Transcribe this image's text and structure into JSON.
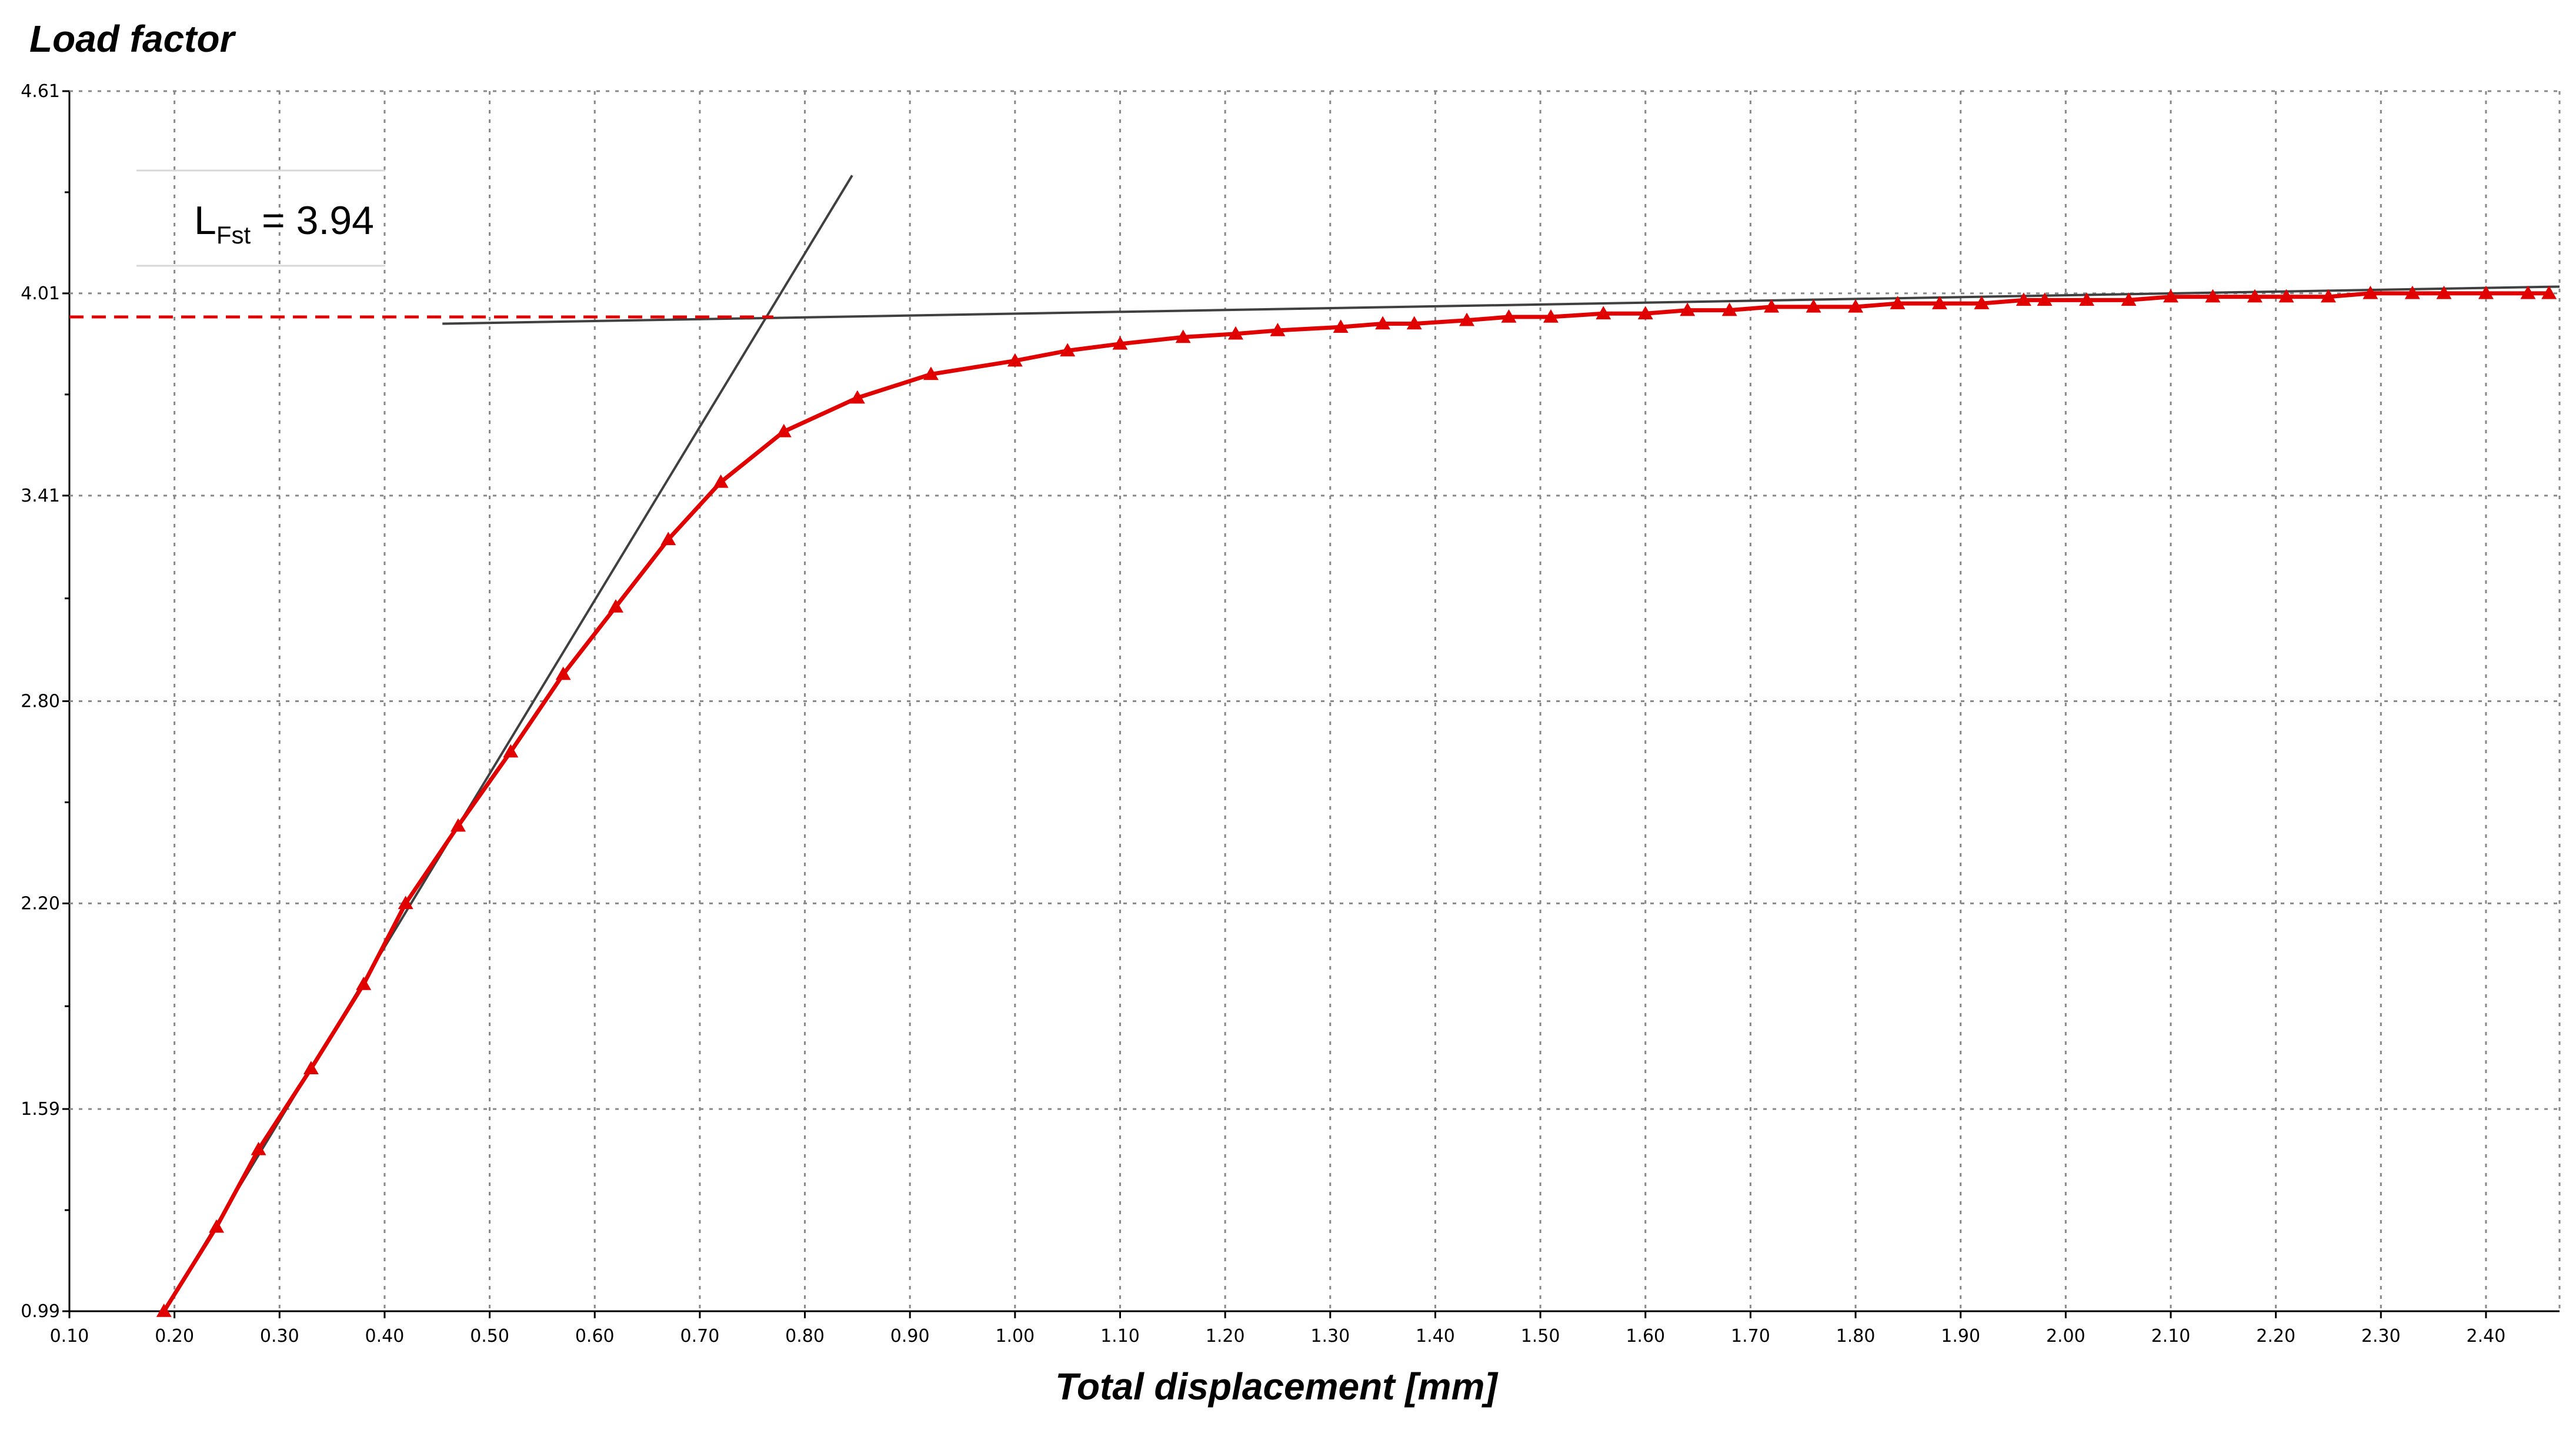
{
  "chart_data": {
    "type": "line",
    "ylabel": "Load factor",
    "xlabel": "Total displacement [mm]",
    "xlim": [
      0.1,
      2.47
    ],
    "ylim": [
      0.99,
      4.61
    ],
    "x_ticks": [
      "0.10",
      "0.20",
      "0.30",
      "0.40",
      "0.50",
      "0.60",
      "0.70",
      "0.80",
      "0.90",
      "1.00",
      "1.10",
      "1.20",
      "1.30",
      "1.40",
      "1.50",
      "1.60",
      "1.70",
      "1.80",
      "1.90",
      "2.00",
      "2.10",
      "2.20",
      "2.30",
      "2.40"
    ],
    "y_ticks": [
      "0.99",
      "1.59",
      "2.20",
      "2.80",
      "3.41",
      "4.01",
      "4.61"
    ],
    "grid": true,
    "colors": {
      "series": "#e00000",
      "reference": "#404040",
      "dashed": "#e00000"
    },
    "series": [
      {
        "marker": "triangle",
        "x": [
          0.19,
          0.24,
          0.28,
          0.33,
          0.38,
          0.42,
          0.47,
          0.52,
          0.57,
          0.62,
          0.67,
          0.72,
          0.78,
          0.85,
          0.92,
          1.0,
          1.05,
          1.1,
          1.16,
          1.21,
          1.25,
          1.31,
          1.35,
          1.38,
          1.43,
          1.47,
          1.51,
          1.56,
          1.6,
          1.64,
          1.68,
          1.72,
          1.76,
          1.8,
          1.84,
          1.88,
          1.92,
          1.96,
          1.98,
          2.02,
          2.06,
          2.1,
          2.14,
          2.18,
          2.21,
          2.25,
          2.29,
          2.33,
          2.36,
          2.4,
          2.44,
          2.46
        ],
        "y": [
          0.99,
          1.24,
          1.47,
          1.71,
          1.96,
          2.2,
          2.43,
          2.65,
          2.88,
          3.08,
          3.28,
          3.45,
          3.6,
          3.7,
          3.77,
          3.81,
          3.84,
          3.86,
          3.88,
          3.89,
          3.9,
          3.91,
          3.92,
          3.92,
          3.93,
          3.94,
          3.94,
          3.95,
          3.95,
          3.96,
          3.96,
          3.97,
          3.97,
          3.97,
          3.98,
          3.98,
          3.98,
          3.99,
          3.99,
          3.99,
          3.99,
          4.0,
          4.0,
          4.0,
          4.0,
          4.0,
          4.01,
          4.01,
          4.01,
          4.01,
          4.01,
          4.01
        ]
      }
    ],
    "reference_lines": [
      {
        "style": "solid",
        "x": [
          0.19,
          0.845
        ],
        "y": [
          0.99,
          4.36
        ]
      },
      {
        "style": "solid",
        "x": [
          0.455,
          2.47
        ],
        "y": [
          3.92,
          4.03
        ]
      },
      {
        "style": "dashed",
        "x": [
          0.1,
          0.77
        ],
        "y": [
          3.94,
          3.94
        ]
      }
    ],
    "annotation": {
      "main": "L",
      "subscript": "Fst",
      "value": " = 3.94"
    }
  }
}
